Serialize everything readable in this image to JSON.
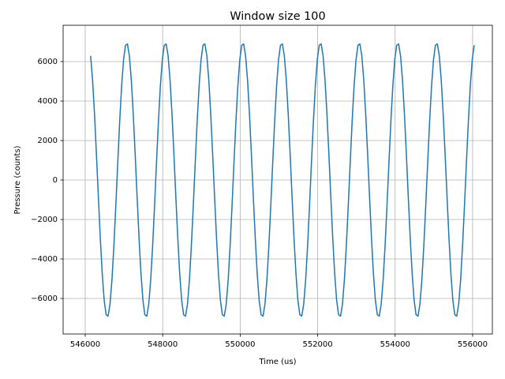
{
  "chart_data": {
    "type": "line",
    "title": "Window size 100",
    "x_label": "Time (us)",
    "y_label": "Pressure (counts)",
    "color": "#1f77b4",
    "grid": true,
    "xlim": [
      545430,
      556510
    ],
    "ylim": [
      -7800,
      7840
    ],
    "xticks": [
      546000,
      548000,
      550000,
      552000,
      554000,
      556000
    ],
    "yticks": [
      {
        "value": -6000,
        "label": "−6000"
      },
      {
        "value": -4000,
        "label": "−4000"
      },
      {
        "value": -2000,
        "label": "−2000"
      },
      0,
      2000,
      4000,
      6000
    ],
    "x": [
      546140,
      546190,
      546240,
      546290,
      546340,
      546390,
      546440,
      546490,
      546540,
      546590,
      546640,
      546690,
      546740,
      546790,
      546840,
      546890,
      546940,
      546990,
      547040,
      547090,
      547140,
      547190,
      547240,
      547290,
      547340,
      547390,
      547440,
      547490,
      547540,
      547590,
      547640,
      547690,
      547740,
      547790,
      547840,
      547890,
      547940,
      547990,
      548040,
      548090,
      548140,
      548190,
      548240,
      548290,
      548340,
      548390,
      548440,
      548490,
      548540,
      548590,
      548640,
      548690,
      548740,
      548790,
      548840,
      548890,
      548940,
      548990,
      549040,
      549090,
      549140,
      549190,
      549240,
      549290,
      549340,
      549390,
      549440,
      549490,
      549540,
      549590,
      549640,
      549690,
      549740,
      549790,
      549840,
      549890,
      549940,
      549990,
      550040,
      550090,
      550140,
      550190,
      550240,
      550290,
      550340,
      550390,
      550440,
      550490,
      550540,
      550590,
      550640,
      550690,
      550740,
      550790,
      550840,
      550890,
      550940,
      550990,
      551040,
      551090,
      551140,
      551190,
      551240,
      551290,
      551340,
      551390,
      551440,
      551490,
      551540,
      551590,
      551640,
      551690,
      551740,
      551790,
      551840,
      551890,
      551940,
      551990,
      552040,
      552090,
      552140,
      552190,
      552240,
      552290,
      552340,
      552390,
      552440,
      552490,
      552540,
      552590,
      552640,
      552690,
      552740,
      552790,
      552840,
      552890,
      552940,
      552990,
      553040,
      553090,
      553140,
      553190,
      553240,
      553290,
      553340,
      553390,
      553440,
      553490,
      553540,
      553590,
      553640,
      553690,
      553740,
      553790,
      553840,
      553890,
      553940,
      553990,
      554040,
      554090,
      554140,
      554190,
      554240,
      554290,
      554340,
      554390,
      554440,
      554490,
      554540,
      554590,
      554640,
      554690,
      554740,
      554790,
      554840,
      554890,
      554940,
      554990,
      555040,
      555090,
      555140,
      555190,
      555240,
      555290,
      555340,
      555390,
      555440,
      555490,
      555540,
      555590,
      555640,
      555690,
      555740,
      555790,
      555840,
      555890,
      555940,
      555990,
      556040
    ],
    "values": [
      6288,
      5067,
      3349,
      1302,
      -871,
      -2959,
      -4757,
      -6090,
      -6827,
      -6895,
      -6288,
      -5067,
      -3349,
      -1302,
      871,
      2959,
      4757,
      6090,
      6827,
      6895,
      6288,
      5067,
      3349,
      1302,
      -871,
      -2959,
      -4757,
      -6090,
      -6827,
      -6895,
      -6288,
      -5067,
      -3349,
      -1302,
      871,
      2959,
      4757,
      6090,
      6827,
      6895,
      6288,
      5067,
      3349,
      1302,
      -871,
      -2959,
      -4757,
      -6090,
      -6827,
      -6895,
      -6288,
      -5067,
      -3349,
      -1302,
      871,
      2959,
      4757,
      6090,
      6827,
      6895,
      6288,
      5067,
      3349,
      1302,
      -871,
      -2959,
      -4757,
      -6090,
      -6827,
      -6895,
      -6288,
      -5067,
      -3349,
      -1302,
      871,
      2959,
      4757,
      6090,
      6827,
      6895,
      6288,
      5067,
      3349,
      1302,
      -871,
      -2959,
      -4757,
      -6090,
      -6827,
      -6895,
      -6288,
      -5067,
      -3349,
      -1302,
      871,
      2959,
      4757,
      6090,
      6827,
      6895,
      6288,
      5067,
      3349,
      1302,
      -871,
      -2959,
      -4757,
      -6090,
      -6827,
      -6895,
      -6288,
      -5067,
      -3349,
      -1302,
      871,
      2959,
      4757,
      6090,
      6827,
      6895,
      6288,
      5067,
      3349,
      1302,
      -871,
      -2959,
      -4757,
      -6090,
      -6827,
      -6895,
      -6288,
      -5067,
      -3349,
      -1302,
      871,
      2959,
      4757,
      6090,
      6827,
      6895,
      6288,
      5067,
      3349,
      1302,
      -871,
      -2959,
      -4757,
      -6090,
      -6827,
      -6895,
      -6288,
      -5067,
      -3349,
      -1302,
      871,
      2959,
      4757,
      6090,
      6827,
      6895,
      6288,
      5067,
      3349,
      1302,
      -871,
      -2959,
      -4757,
      -6090,
      -6827,
      -6895,
      -6288,
      -5067,
      -3349,
      -1302,
      871,
      2959,
      4757,
      6090,
      6827,
      6895,
      6288,
      5067,
      3349,
      1302,
      -871,
      -2959,
      -4757,
      -6090,
      -6827,
      -6895,
      -6288,
      -5067,
      -3349,
      -1302,
      871,
      2959,
      4757,
      6090,
      6827
    ]
  }
}
